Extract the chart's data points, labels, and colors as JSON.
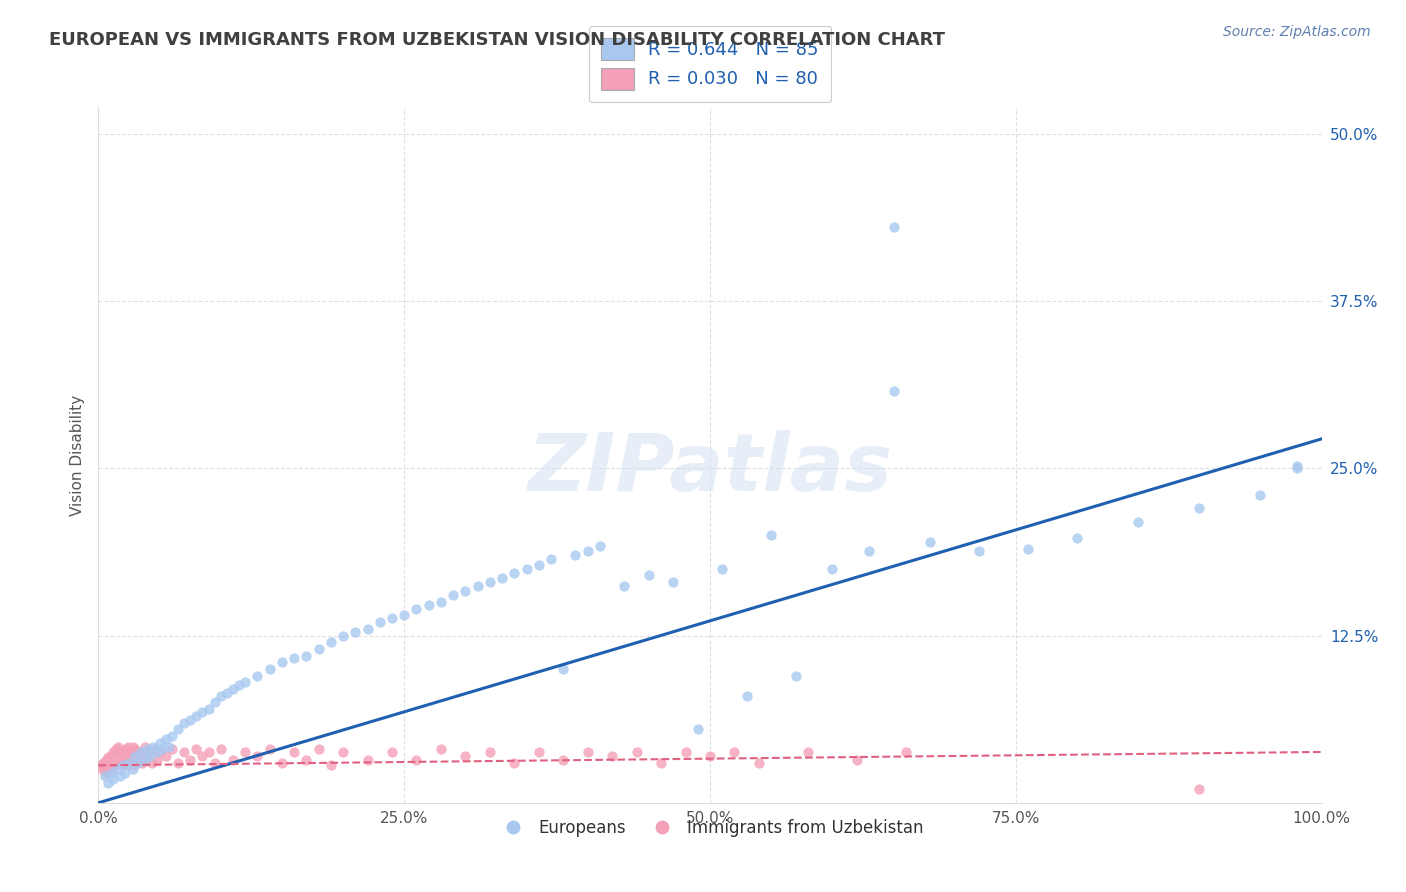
{
  "title": "EUROPEAN VS IMMIGRANTS FROM UZBEKISTAN VISION DISABILITY CORRELATION CHART",
  "source": "Source: ZipAtlas.com",
  "ylabel": "Vision Disability",
  "xlabel": "",
  "watermark": "ZIPatlas",
  "xlim": [
    0.0,
    1.0
  ],
  "ylim": [
    0.0,
    0.52
  ],
  "xtick_labels": [
    "0.0%",
    "25.0%",
    "50.0%",
    "75.0%",
    "100.0%"
  ],
  "xtick_vals": [
    0.0,
    0.25,
    0.5,
    0.75,
    1.0
  ],
  "ytick_labels": [
    "12.5%",
    "25.0%",
    "37.5%",
    "50.0%"
  ],
  "ytick_vals": [
    0.125,
    0.25,
    0.375,
    0.5
  ],
  "legend_R1": "R = 0.644",
  "legend_N1": "N = 85",
  "legend_R2": "R = 0.030",
  "legend_N2": "N = 80",
  "color_european": "#a8c8f0",
  "color_uzbekistan": "#f4a0b8",
  "color_trendline_european": "#2060b0",
  "color_trendline_uzbekistan": "#e06080",
  "background_color": "#ffffff",
  "grid_color": "#cccccc",
  "title_color": "#404040",
  "source_color": "#6080b0",
  "legend_text_color": "#2060b0",
  "eu_trend_x0": 0.0,
  "eu_trend_y0": 0.0,
  "eu_trend_x1": 1.0,
  "eu_trend_y1": 0.272,
  "uz_trend_x0": 0.0,
  "uz_trend_y0": 0.028,
  "uz_trend_x1": 1.0,
  "uz_trend_y1": 0.038,
  "european_x": [
    0.005,
    0.008,
    0.01,
    0.012,
    0.015,
    0.018,
    0.02,
    0.022,
    0.025,
    0.028,
    0.03,
    0.032,
    0.035,
    0.038,
    0.04,
    0.042,
    0.045,
    0.048,
    0.05,
    0.052,
    0.055,
    0.058,
    0.06,
    0.065,
    0.07,
    0.075,
    0.08,
    0.085,
    0.09,
    0.095,
    0.1,
    0.105,
    0.11,
    0.115,
    0.12,
    0.13,
    0.14,
    0.15,
    0.16,
    0.17,
    0.18,
    0.19,
    0.2,
    0.21,
    0.22,
    0.23,
    0.24,
    0.25,
    0.26,
    0.27,
    0.28,
    0.29,
    0.3,
    0.31,
    0.32,
    0.33,
    0.34,
    0.35,
    0.36,
    0.37,
    0.38,
    0.39,
    0.4,
    0.41,
    0.43,
    0.45,
    0.47,
    0.49,
    0.51,
    0.53,
    0.55,
    0.57,
    0.6,
    0.63,
    0.65,
    0.68,
    0.72,
    0.76,
    0.8,
    0.85,
    0.9,
    0.95,
    0.98,
    0.65,
    0.98
  ],
  "european_y": [
    0.02,
    0.015,
    0.022,
    0.018,
    0.025,
    0.02,
    0.028,
    0.022,
    0.03,
    0.025,
    0.035,
    0.03,
    0.038,
    0.032,
    0.04,
    0.035,
    0.042,
    0.038,
    0.045,
    0.04,
    0.048,
    0.042,
    0.05,
    0.055,
    0.06,
    0.062,
    0.065,
    0.068,
    0.07,
    0.075,
    0.08,
    0.082,
    0.085,
    0.088,
    0.09,
    0.095,
    0.1,
    0.105,
    0.108,
    0.11,
    0.115,
    0.12,
    0.125,
    0.128,
    0.13,
    0.135,
    0.138,
    0.14,
    0.145,
    0.148,
    0.15,
    0.155,
    0.158,
    0.162,
    0.165,
    0.168,
    0.172,
    0.175,
    0.178,
    0.182,
    0.1,
    0.185,
    0.188,
    0.192,
    0.162,
    0.17,
    0.165,
    0.055,
    0.175,
    0.08,
    0.2,
    0.095,
    0.175,
    0.188,
    0.308,
    0.195,
    0.188,
    0.19,
    0.198,
    0.21,
    0.22,
    0.23,
    0.25,
    0.43,
    0.252
  ],
  "uzbekistan_x": [
    0.002,
    0.003,
    0.004,
    0.005,
    0.006,
    0.007,
    0.008,
    0.009,
    0.01,
    0.011,
    0.012,
    0.013,
    0.014,
    0.015,
    0.016,
    0.017,
    0.018,
    0.019,
    0.02,
    0.021,
    0.022,
    0.023,
    0.024,
    0.025,
    0.026,
    0.027,
    0.028,
    0.029,
    0.03,
    0.032,
    0.034,
    0.036,
    0.038,
    0.04,
    0.042,
    0.044,
    0.046,
    0.048,
    0.05,
    0.055,
    0.06,
    0.065,
    0.07,
    0.075,
    0.08,
    0.085,
    0.09,
    0.095,
    0.1,
    0.11,
    0.12,
    0.13,
    0.14,
    0.15,
    0.16,
    0.17,
    0.18,
    0.19,
    0.2,
    0.22,
    0.24,
    0.26,
    0.28,
    0.3,
    0.32,
    0.34,
    0.36,
    0.38,
    0.4,
    0.42,
    0.44,
    0.46,
    0.48,
    0.5,
    0.52,
    0.54,
    0.58,
    0.62,
    0.66,
    0.9
  ],
  "uzbekistan_y": [
    0.028,
    0.025,
    0.03,
    0.022,
    0.032,
    0.026,
    0.034,
    0.028,
    0.035,
    0.025,
    0.038,
    0.028,
    0.04,
    0.03,
    0.042,
    0.032,
    0.038,
    0.028,
    0.035,
    0.03,
    0.04,
    0.032,
    0.042,
    0.028,
    0.038,
    0.035,
    0.042,
    0.028,
    0.04,
    0.032,
    0.038,
    0.03,
    0.042,
    0.035,
    0.038,
    0.03,
    0.04,
    0.032,
    0.038,
    0.035,
    0.04,
    0.03,
    0.038,
    0.032,
    0.04,
    0.035,
    0.038,
    0.03,
    0.04,
    0.032,
    0.038,
    0.035,
    0.04,
    0.03,
    0.038,
    0.032,
    0.04,
    0.028,
    0.038,
    0.032,
    0.038,
    0.032,
    0.04,
    0.035,
    0.038,
    0.03,
    0.038,
    0.032,
    0.038,
    0.035,
    0.038,
    0.03,
    0.038,
    0.035,
    0.038,
    0.03,
    0.038,
    0.032,
    0.038,
    0.01
  ]
}
